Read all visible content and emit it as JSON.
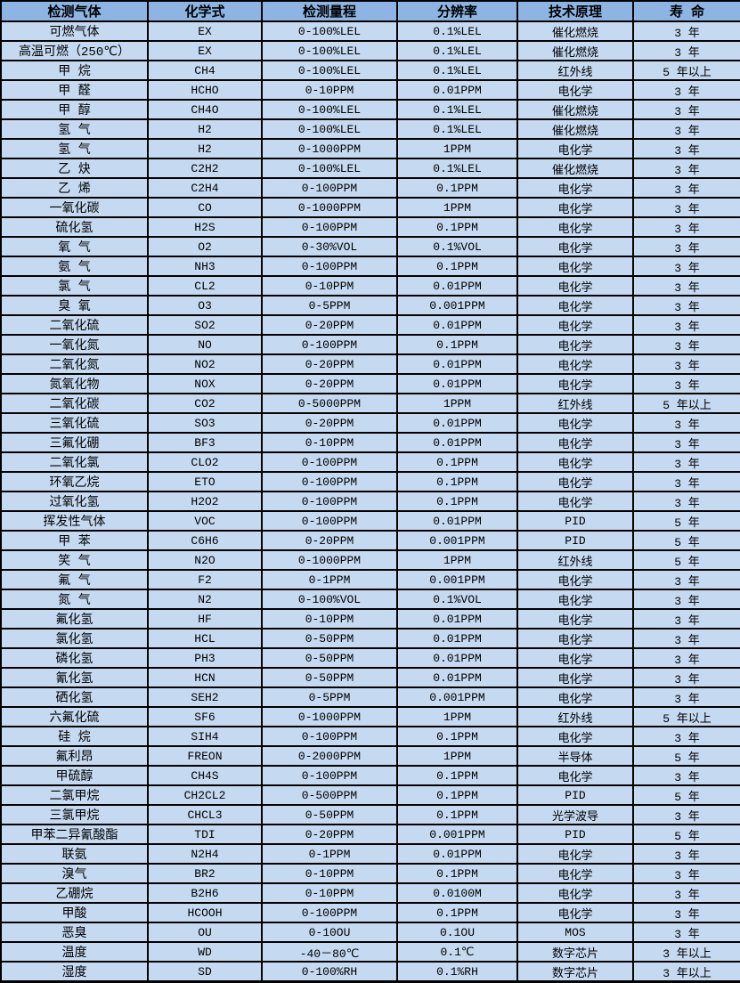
{
  "colors": {
    "header_bg": "#8db4e2",
    "row_bg": "#c5d9f1",
    "border": "#000000",
    "text": "#000000"
  },
  "table": {
    "headers": [
      "检测气体",
      "化学式",
      "检测量程",
      "分辨率",
      "技术原理",
      "寿  命"
    ],
    "rows": [
      [
        "可燃气体",
        "EX",
        "0-100%LEL",
        "0.1%LEL",
        "催化燃烧",
        "3 年"
      ],
      [
        "高温可燃（250℃）",
        "EX",
        "0-100%LEL",
        "0.1%LEL",
        "催化燃烧",
        "3 年"
      ],
      [
        "甲  烷",
        "CH4",
        "0-100%LEL",
        "0.1%LEL",
        "红外线",
        "5 年以上"
      ],
      [
        "甲  醛",
        "HCHO",
        "0-10PPM",
        "0.01PPM",
        "电化学",
        "3 年"
      ],
      [
        "甲  醇",
        "CH4O",
        "0-100%LEL",
        "0.1%LEL",
        "催化燃烧",
        "3 年"
      ],
      [
        "氢  气",
        "H2",
        "0-100%LEL",
        "0.1%LEL",
        "催化燃烧",
        "3 年"
      ],
      [
        "氢  气",
        "H2",
        "0-1000PPM",
        "1PPM",
        "电化学",
        "3 年"
      ],
      [
        "乙  炔",
        "C2H2",
        "0-100%LEL",
        "0.1%LEL",
        "催化燃烧",
        "3 年"
      ],
      [
        "乙  烯",
        "C2H4",
        "0-100PPM",
        "0.1PPM",
        "电化学",
        "3 年"
      ],
      [
        "一氧化碳",
        "CO",
        "0-1000PPM",
        "1PPM",
        "电化学",
        "3 年"
      ],
      [
        "硫化氢",
        "H2S",
        "0-100PPM",
        "0.1PPM",
        "电化学",
        "3 年"
      ],
      [
        "氧  气",
        "O2",
        "0-30%VOL",
        "0.1%VOL",
        "电化学",
        "3 年"
      ],
      [
        "氨  气",
        "NH3",
        "0-100PPM",
        "0.1PPM",
        "电化学",
        "3 年"
      ],
      [
        "氯  气",
        "CL2",
        "0-10PPM",
        "0.01PPM",
        "电化学",
        "3 年"
      ],
      [
        "臭  氧",
        "O3",
        "0-5PPM",
        "0.001PPM",
        "电化学",
        "3 年"
      ],
      [
        "二氧化硫",
        "SO2",
        "0-20PPM",
        "0.01PPM",
        "电化学",
        "3 年"
      ],
      [
        "一氧化氮",
        "NO",
        "0-100PPM",
        "0.1PPM",
        "电化学",
        "3 年"
      ],
      [
        "二氧化氮",
        "NO2",
        "0-20PPM",
        "0.01PPM",
        "电化学",
        "3 年"
      ],
      [
        "氮氧化物",
        "NOX",
        "0-20PPM",
        "0.01PPM",
        "电化学",
        "3 年"
      ],
      [
        "二氧化碳",
        "CO2",
        "0-5000PPM",
        "1PPM",
        "红外线",
        "5 年以上"
      ],
      [
        "三氧化硫",
        "SO3",
        "0-20PPM",
        "0.01PPM",
        "电化学",
        "3 年"
      ],
      [
        "三氟化硼",
        "BF3",
        "0-10PPM",
        "0.01PPM",
        "电化学",
        "3 年"
      ],
      [
        "二氧化氯",
        "CLO2",
        "0-100PPM",
        "0.1PPM",
        "电化学",
        "3 年"
      ],
      [
        "环氧乙烷",
        "ETO",
        "0-100PPM",
        "0.1PPM",
        "电化学",
        "3 年"
      ],
      [
        "过氧化氢",
        "H2O2",
        "0-100PPM",
        "0.1PPM",
        "电化学",
        "3 年"
      ],
      [
        "挥发性气体",
        "VOC",
        "0-100PPM",
        "0.01PPM",
        "PID",
        "5 年"
      ],
      [
        "甲  苯",
        "C6H6",
        "0-20PPM",
        "0.001PPM",
        "PID",
        "5 年"
      ],
      [
        "笑  气",
        "N2O",
        "0-1000PPM",
        "1PPM",
        "红外线",
        "5 年"
      ],
      [
        "氟  气",
        "F2",
        "0-1PPM",
        "0.001PPM",
        "电化学",
        "3 年"
      ],
      [
        "氮  气",
        "N2",
        "0-100%VOL",
        "0.1%VOL",
        "电化学",
        "3 年"
      ],
      [
        "氟化氢",
        "HF",
        "0-10PPM",
        "0.01PPM",
        "电化学",
        "3 年"
      ],
      [
        "氯化氢",
        "HCL",
        "0-50PPM",
        "0.01PPM",
        "电化学",
        "3 年"
      ],
      [
        "磷化氢",
        "PH3",
        "0-50PPM",
        "0.01PPM",
        "电化学",
        "3 年"
      ],
      [
        "氰化氢",
        "HCN",
        "0-50PPM",
        "0.01PPM",
        "电化学",
        "3 年"
      ],
      [
        "硒化氢",
        "SEH2",
        "0-5PPM",
        "0.001PPM",
        "电化学",
        "3 年"
      ],
      [
        "六氟化硫",
        "SF6",
        "0-1000PPM",
        "1PPM",
        "红外线",
        "5 年以上"
      ],
      [
        "硅  烷",
        "SIH4",
        "0-100PPM",
        "0.1PPM",
        "电化学",
        "3 年"
      ],
      [
        "氟利昂",
        "FREON",
        "0-2000PPM",
        "1PPM",
        "半导体",
        "5 年"
      ],
      [
        "甲硫醇",
        "CH4S",
        "0-100PPM",
        "0.1PPM",
        "电化学",
        "3 年"
      ],
      [
        "二氯甲烷",
        "CH2CL2",
        "0-500PPM",
        "0.1PPM",
        "PID",
        "5 年"
      ],
      [
        "三氯甲烷",
        "CHCL3",
        "0-50PPM",
        "0.1PPM",
        "光学波导",
        "3 年"
      ],
      [
        "甲苯二异氰酸酯",
        "TDI",
        "0-20PPM",
        "0.001PPM",
        "PID",
        "5 年"
      ],
      [
        "联氨",
        "N2H4",
        "0-1PPM",
        "0.01PPM",
        "电化学",
        "3 年"
      ],
      [
        "溴气",
        "BR2",
        "0-10PPM",
        "0.1PPM",
        "电化学",
        "3 年"
      ],
      [
        "乙硼烷",
        "B2H6",
        "0-10PPM",
        "0.0100M",
        "电化学",
        "3 年"
      ],
      [
        "甲酸",
        "HCOOH",
        "0-100PPM",
        "0.1PPM",
        "电化学",
        "3 年"
      ],
      [
        "恶臭",
        "OU",
        "0-10OU",
        "0.1OU",
        "MOS",
        "3 年"
      ],
      [
        "温度",
        "WD",
        "-40－80℃",
        "0.1℃",
        "数字芯片",
        "3 年以上"
      ],
      [
        "湿度",
        "SD",
        "0-100%RH",
        "0.1%RH",
        "数字芯片",
        "3 年以上"
      ]
    ]
  }
}
